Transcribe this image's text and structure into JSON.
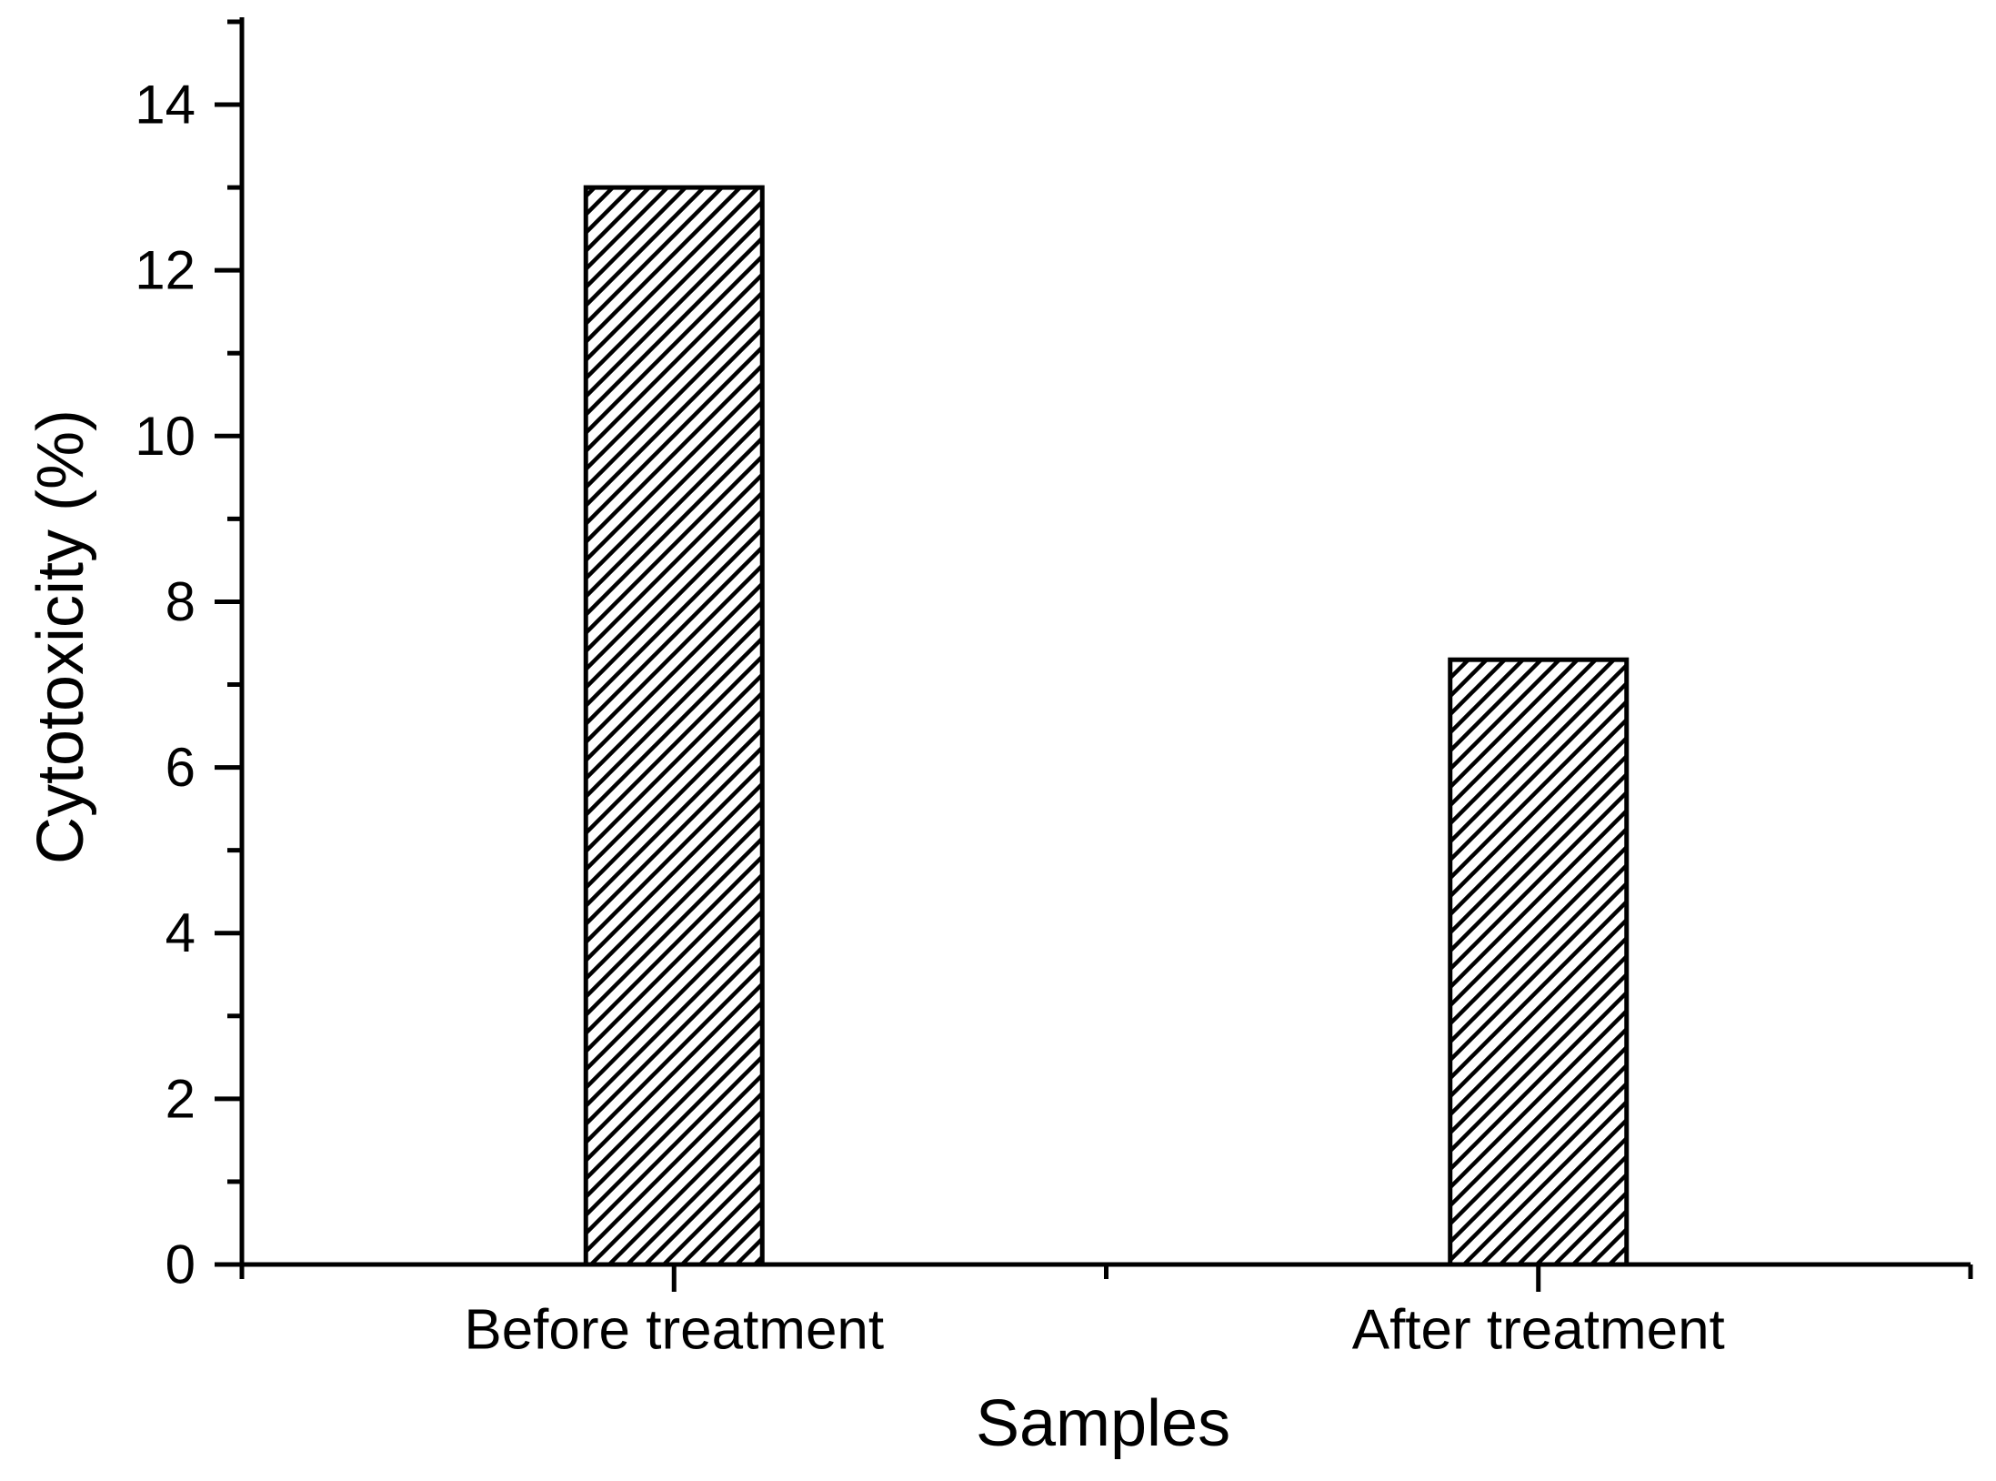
{
  "page": {
    "background": "#ffffff",
    "text_color": "#000000"
  },
  "chart_data": {
    "type": "bar",
    "title": "",
    "categories": [
      "Before treatment",
      "After treatment"
    ],
    "values": [
      13.0,
      7.3
    ],
    "xlabel": "Samples",
    "ylabel": "Cytotoxicity (%)",
    "ylim": [
      0,
      15
    ],
    "ytick_major": [
      0,
      2,
      4,
      6,
      8,
      10,
      12,
      14
    ],
    "ytick_labels": [
      "0",
      "2",
      "4",
      "6",
      "8",
      "10",
      "12",
      "14"
    ],
    "ytick_minor": [
      1,
      3,
      5,
      7,
      9,
      11,
      13,
      15
    ],
    "grid": false,
    "legend": null,
    "bar_fill": "#ffffff",
    "bar_hatch": "forward-diagonal",
    "bar_edge_color": "#000000",
    "axis_color": "#000000"
  }
}
